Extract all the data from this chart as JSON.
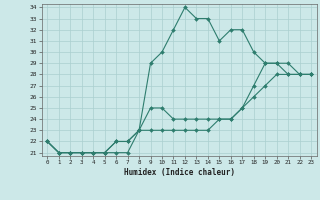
{
  "xlabel": "Humidex (Indice chaleur)",
  "bg_color": "#cce8e8",
  "line_color": "#2e7d6e",
  "grid_color": "#aacfcf",
  "xlim": [
    -0.5,
    23.5
  ],
  "ylim": [
    20.7,
    34.3
  ],
  "yticks": [
    21,
    22,
    23,
    24,
    25,
    26,
    27,
    28,
    29,
    30,
    31,
    32,
    33,
    34
  ],
  "xticks": [
    0,
    1,
    2,
    3,
    4,
    5,
    6,
    7,
    8,
    9,
    10,
    11,
    12,
    13,
    14,
    15,
    16,
    17,
    18,
    19,
    20,
    21,
    22,
    23
  ],
  "series": [
    {
      "x": [
        0,
        1,
        2,
        3,
        4,
        5,
        6,
        7,
        8,
        9,
        10,
        11,
        12,
        13,
        14,
        15,
        16,
        17,
        18,
        19,
        20,
        21,
        22,
        23
      ],
      "y": [
        22,
        21,
        21,
        21,
        21,
        21,
        21,
        21,
        23,
        29,
        30,
        32,
        34,
        33,
        33,
        31,
        32,
        32,
        30,
        29,
        29,
        28,
        28,
        28
      ]
    },
    {
      "x": [
        0,
        1,
        2,
        3,
        4,
        5,
        6,
        7,
        8,
        9,
        10,
        11,
        12,
        13,
        14,
        15,
        16,
        17,
        18,
        19,
        20,
        21,
        22,
        23
      ],
      "y": [
        22,
        21,
        21,
        21,
        21,
        21,
        22,
        22,
        23,
        25,
        25,
        24,
        24,
        24,
        24,
        24,
        24,
        25,
        27,
        29,
        29,
        29,
        28,
        28
      ]
    },
    {
      "x": [
        0,
        1,
        2,
        3,
        4,
        5,
        6,
        7,
        8,
        9,
        10,
        11,
        12,
        13,
        14,
        15,
        16,
        17,
        18,
        19,
        20,
        21,
        22,
        23
      ],
      "y": [
        22,
        21,
        21,
        21,
        21,
        21,
        22,
        22,
        23,
        23,
        23,
        23,
        23,
        23,
        23,
        24,
        24,
        25,
        26,
        27,
        28,
        28,
        28,
        28
      ]
    }
  ]
}
